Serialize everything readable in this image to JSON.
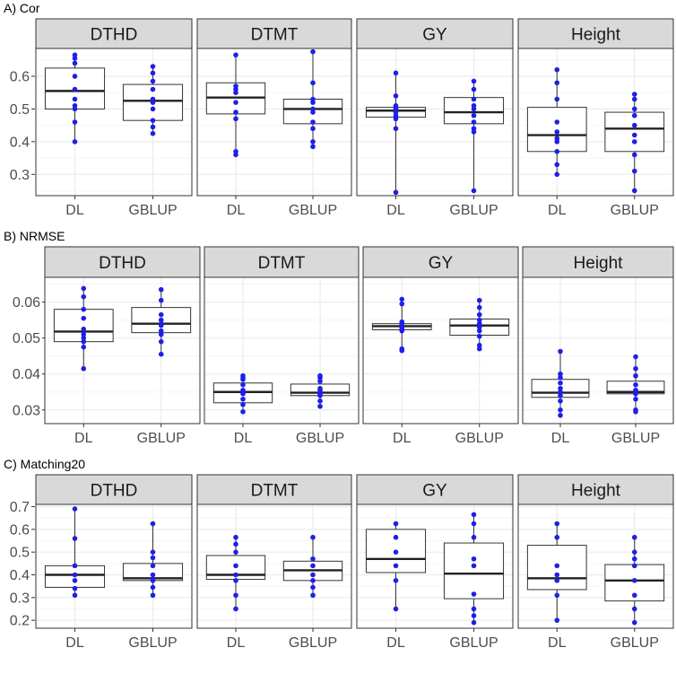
{
  "colors": {
    "point": "#1f1fe8",
    "strip": "#d9d9d9",
    "grid_major": "#ebebeb",
    "grid_minor": "#f5f5f5",
    "axis_text": "#4d4d4d"
  },
  "chart_data": [
    {
      "type": "boxplot",
      "title": "A) Cor",
      "categories": [
        "DL",
        "GBLUP"
      ],
      "yticks": [
        "0.3",
        "0.4",
        "0.5",
        "0.6"
      ],
      "ylim": [
        0.235,
        0.685
      ],
      "facets": [
        {
          "label": "DTHD",
          "boxes": [
            {
              "q1": 0.5,
              "median": 0.555,
              "q3": 0.625,
              "low": 0.4,
              "high": 0.665,
              "points": [
                0.4,
                0.46,
                0.5,
                0.51,
                0.53,
                0.56,
                0.6,
                0.64,
                0.655,
                0.665
              ]
            },
            {
              "q1": 0.465,
              "median": 0.525,
              "q3": 0.575,
              "low": 0.425,
              "high": 0.63,
              "points": [
                0.425,
                0.445,
                0.465,
                0.5,
                0.52,
                0.53,
                0.56,
                0.585,
                0.61,
                0.63
              ]
            }
          ]
        },
        {
          "label": "DTMT",
          "boxes": [
            {
              "q1": 0.485,
              "median": 0.535,
              "q3": 0.58,
              "low": 0.36,
              "high": 0.665,
              "points": [
                0.36,
                0.37,
                0.47,
                0.49,
                0.52,
                0.55,
                0.56,
                0.57,
                0.665
              ]
            },
            {
              "q1": 0.455,
              "median": 0.5,
              "q3": 0.53,
              "low": 0.385,
              "high": 0.675,
              "points": [
                0.385,
                0.4,
                0.44,
                0.46,
                0.49,
                0.5,
                0.52,
                0.53,
                0.58,
                0.675
              ]
            }
          ]
        },
        {
          "label": "GY",
          "boxes": [
            {
              "q1": 0.475,
              "median": 0.495,
              "q3": 0.505,
              "low": 0.245,
              "high": 0.61,
              "points": [
                0.245,
                0.44,
                0.47,
                0.48,
                0.49,
                0.5,
                0.505,
                0.51,
                0.54,
                0.61
              ]
            },
            {
              "q1": 0.455,
              "median": 0.49,
              "q3": 0.535,
              "low": 0.25,
              "high": 0.585,
              "points": [
                0.25,
                0.43,
                0.44,
                0.46,
                0.48,
                0.5,
                0.51,
                0.53,
                0.56,
                0.585
              ]
            }
          ]
        },
        {
          "label": "Height",
          "boxes": [
            {
              "q1": 0.37,
              "median": 0.42,
              "q3": 0.505,
              "low": 0.3,
              "high": 0.62,
              "points": [
                0.3,
                0.33,
                0.37,
                0.4,
                0.41,
                0.43,
                0.46,
                0.53,
                0.58,
                0.62
              ]
            },
            {
              "q1": 0.37,
              "median": 0.44,
              "q3": 0.49,
              "low": 0.25,
              "high": 0.545,
              "points": [
                0.25,
                0.31,
                0.36,
                0.4,
                0.42,
                0.45,
                0.48,
                0.5,
                0.53,
                0.545
              ]
            }
          ]
        }
      ]
    },
    {
      "type": "boxplot",
      "title": "B) NRMSE",
      "categories": [
        "DL",
        "GBLUP"
      ],
      "yticks": [
        "0.03",
        "0.04",
        "0.05",
        "0.06"
      ],
      "ylim": [
        0.0262,
        0.0669
      ],
      "facets": [
        {
          "label": "DTHD",
          "boxes": [
            {
              "q1": 0.049,
              "median": 0.0518,
              "q3": 0.058,
              "low": 0.0415,
              "high": 0.0638,
              "points": [
                0.0415,
                0.0475,
                0.049,
                0.05,
                0.051,
                0.0525,
                0.0555,
                0.058,
                0.0615,
                0.0638
              ]
            },
            {
              "q1": 0.0515,
              "median": 0.054,
              "q3": 0.0585,
              "low": 0.0455,
              "high": 0.0635,
              "points": [
                0.0455,
                0.049,
                0.051,
                0.052,
                0.0535,
                0.054,
                0.055,
                0.0565,
                0.0605,
                0.0635
              ]
            }
          ]
        },
        {
          "label": "DTMT",
          "boxes": [
            {
              "q1": 0.032,
              "median": 0.035,
              "q3": 0.0375,
              "low": 0.0295,
              "high": 0.0395,
              "points": [
                0.0295,
                0.0315,
                0.033,
                0.0345,
                0.035,
                0.0355,
                0.037,
                0.0385,
                0.039,
                0.0395
              ]
            },
            {
              "q1": 0.034,
              "median": 0.0348,
              "q3": 0.0372,
              "low": 0.031,
              "high": 0.0395,
              "points": [
                0.031,
                0.0325,
                0.034,
                0.0345,
                0.035,
                0.0355,
                0.036,
                0.038,
                0.039,
                0.0395
              ]
            }
          ]
        },
        {
          "label": "GY",
          "boxes": [
            {
              "q1": 0.0523,
              "median": 0.0533,
              "q3": 0.054,
              "low": 0.0465,
              "high": 0.0608,
              "points": [
                0.0465,
                0.047,
                0.052,
                0.0525,
                0.053,
                0.0535,
                0.054,
                0.0545,
                0.0595,
                0.0608
              ]
            },
            {
              "q1": 0.0508,
              "median": 0.0535,
              "q3": 0.0553,
              "low": 0.047,
              "high": 0.0605,
              "points": [
                0.047,
                0.048,
                0.0505,
                0.052,
                0.053,
                0.054,
                0.055,
                0.0565,
                0.0585,
                0.0605
              ]
            }
          ]
        },
        {
          "label": "Height",
          "boxes": [
            {
              "q1": 0.0335,
              "median": 0.0348,
              "q3": 0.0385,
              "low": 0.0285,
              "high": 0.0463,
              "points": [
                0.0285,
                0.03,
                0.0325,
                0.034,
                0.035,
                0.036,
                0.0375,
                0.039,
                0.04,
                0.0463
              ]
            },
            {
              "q1": 0.0345,
              "median": 0.035,
              "q3": 0.038,
              "low": 0.0295,
              "high": 0.0448,
              "points": [
                0.0295,
                0.03,
                0.033,
                0.0345,
                0.035,
                0.0355,
                0.037,
                0.0395,
                0.0415,
                0.0448
              ]
            }
          ]
        }
      ]
    },
    {
      "type": "boxplot",
      "title": "C) Matching20",
      "categories": [
        "DL",
        "GBLUP"
      ],
      "yticks": [
        "0.2",
        "0.3",
        "0.4",
        "0.5",
        "0.6",
        "0.7"
      ],
      "ylim": [
        0.165,
        0.71
      ],
      "facets": [
        {
          "label": "DTHD",
          "boxes": [
            {
              "q1": 0.345,
              "median": 0.4,
              "q3": 0.44,
              "low": 0.31,
              "high": 0.69,
              "points": [
                0.31,
                0.34,
                0.375,
                0.4,
                0.44,
                0.56,
                0.69
              ]
            },
            {
              "q1": 0.375,
              "median": 0.385,
              "q3": 0.45,
              "low": 0.31,
              "high": 0.625,
              "points": [
                0.31,
                0.345,
                0.375,
                0.38,
                0.4,
                0.44,
                0.475,
                0.5,
                0.625
              ]
            }
          ]
        },
        {
          "label": "DTMT",
          "boxes": [
            {
              "q1": 0.38,
              "median": 0.4,
              "q3": 0.485,
              "low": 0.25,
              "high": 0.565,
              "points": [
                0.25,
                0.31,
                0.375,
                0.4,
                0.44,
                0.5,
                0.535,
                0.565
              ]
            },
            {
              "q1": 0.375,
              "median": 0.42,
              "q3": 0.46,
              "low": 0.31,
              "high": 0.565,
              "points": [
                0.31,
                0.345,
                0.375,
                0.4,
                0.44,
                0.47,
                0.565
              ]
            }
          ]
        },
        {
          "label": "GY",
          "boxes": [
            {
              "q1": 0.41,
              "median": 0.47,
              "q3": 0.6,
              "low": 0.25,
              "high": 0.625,
              "points": [
                0.25,
                0.375,
                0.44,
                0.5,
                0.565,
                0.625
              ]
            },
            {
              "q1": 0.295,
              "median": 0.405,
              "q3": 0.54,
              "low": 0.19,
              "high": 0.665,
              "points": [
                0.19,
                0.22,
                0.25,
                0.315,
                0.44,
                0.47,
                0.565,
                0.625,
                0.665
              ]
            }
          ]
        },
        {
          "label": "Height",
          "boxes": [
            {
              "q1": 0.335,
              "median": 0.385,
              "q3": 0.53,
              "low": 0.2,
              "high": 0.625,
              "points": [
                0.2,
                0.31,
                0.375,
                0.4,
                0.44,
                0.565,
                0.625
              ]
            },
            {
              "q1": 0.285,
              "median": 0.375,
              "q3": 0.445,
              "low": 0.19,
              "high": 0.565,
              "points": [
                0.19,
                0.25,
                0.31,
                0.375,
                0.44,
                0.47,
                0.5,
                0.565
              ]
            }
          ]
        }
      ]
    }
  ]
}
